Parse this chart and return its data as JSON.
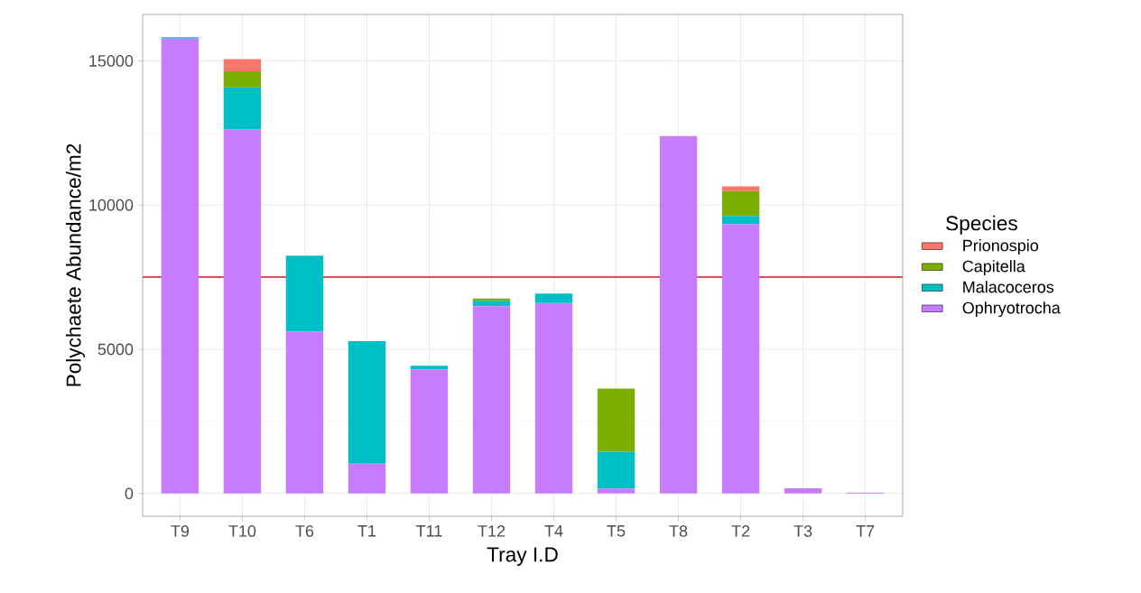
{
  "chart_data": {
    "type": "bar",
    "stacked": true,
    "xlabel": "Tray I.D",
    "ylabel": "Polychaete Abundance/m2",
    "legend_title": "Species",
    "categories": [
      "T9",
      "T10",
      "T6",
      "T1",
      "T11",
      "T12",
      "T4",
      "T5",
      "T8",
      "T2",
      "T3",
      "T7"
    ],
    "series": [
      {
        "name": "Ophryotrocha",
        "color": "#c77cff",
        "values": [
          15770,
          12630,
          5620,
          1030,
          4300,
          6490,
          6600,
          170,
          12390,
          9330,
          180,
          30
        ]
      },
      {
        "name": "Malacoceros",
        "color": "#00bfc4",
        "values": [
          50,
          1450,
          2630,
          4250,
          130,
          190,
          330,
          1280,
          0,
          290,
          0,
          0
        ]
      },
      {
        "name": "Capitella",
        "color": "#7cae00",
        "values": [
          0,
          560,
          0,
          0,
          0,
          80,
          0,
          2190,
          0,
          860,
          0,
          0
        ]
      },
      {
        "name": "Prionospio",
        "color": "#f8766d",
        "values": [
          0,
          420,
          0,
          0,
          0,
          0,
          0,
          0,
          0,
          170,
          0,
          0
        ]
      }
    ],
    "ref_lines": [
      {
        "axis": "y",
        "value": 7500,
        "color": "#e34b5b"
      }
    ],
    "ylim": [
      -790,
      16610
    ],
    "yticks": [
      0,
      5000,
      10000,
      15000
    ],
    "grid": true,
    "legend": "right"
  }
}
